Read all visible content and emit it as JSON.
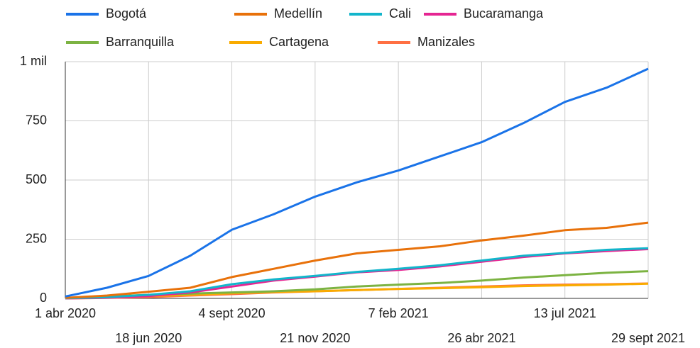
{
  "chart_data": {
    "type": "line",
    "x": [
      "2020-04-01",
      "2020-05-10",
      "2020-06-18",
      "2020-07-27",
      "2020-09-04",
      "2020-10-13",
      "2020-11-21",
      "2020-12-30",
      "2021-02-07",
      "2021-03-18",
      "2021-04-26",
      "2021-06-04",
      "2021-07-13",
      "2021-08-21",
      "2021-09-29"
    ],
    "xlim": [
      "2020-04-01",
      "2021-09-29"
    ],
    "xticks": [
      {
        "value": "2020-04-01",
        "label": "1 abr 2020"
      },
      {
        "value": "2020-06-18",
        "label": "18 jun 2020"
      },
      {
        "value": "2020-09-04",
        "label": "4 sept 2020"
      },
      {
        "value": "2020-11-21",
        "label": "21 nov 2020"
      },
      {
        "value": "2021-02-07",
        "label": "7 feb 2021"
      },
      {
        "value": "2021-04-26",
        "label": "26 abr 2021"
      },
      {
        "value": "2021-07-13",
        "label": "13 jul 2021"
      },
      {
        "value": "2021-09-29",
        "label": "29 sept 2021"
      }
    ],
    "ylim": [
      0,
      1000
    ],
    "yticks": [
      0,
      250,
      500,
      750,
      {
        "value": 1000,
        "label": "1 mil"
      }
    ],
    "grid": true,
    "legend": "top",
    "series": [
      {
        "name": "Bogotá",
        "color": "#1a73e8",
        "values": [
          8,
          45,
          95,
          180,
          290,
          355,
          430,
          490,
          540,
          600,
          660,
          740,
          830,
          890,
          970
        ]
      },
      {
        "name": "Medellín",
        "color": "#e8710a",
        "values": [
          2,
          12,
          28,
          45,
          90,
          125,
          160,
          190,
          205,
          220,
          245,
          265,
          288,
          298,
          320
        ]
      },
      {
        "name": "Cali",
        "color": "#12b5cb",
        "values": [
          1,
          5,
          15,
          30,
          60,
          80,
          95,
          112,
          125,
          140,
          160,
          180,
          192,
          205,
          212
        ]
      },
      {
        "name": "Bucaramanga",
        "color": "#e52592",
        "values": [
          0,
          3,
          10,
          25,
          50,
          75,
          92,
          110,
          120,
          135,
          155,
          175,
          190,
          200,
          208
        ]
      },
      {
        "name": "Barranquilla",
        "color": "#7cb342",
        "values": [
          1,
          8,
          15,
          20,
          25,
          30,
          38,
          50,
          58,
          65,
          75,
          88,
          98,
          108,
          115
        ]
      },
      {
        "name": "Cartagena",
        "color": "#f9ab00",
        "values": [
          1,
          4,
          10,
          15,
          22,
          27,
          30,
          35,
          40,
          43,
          47,
          52,
          55,
          58,
          62
        ]
      },
      {
        "name": "Manizales",
        "color": "#ff7043",
        "values": [
          0,
          2,
          5,
          12,
          18,
          25,
          30,
          35,
          40,
          45,
          50,
          55,
          58,
          60,
          63
        ]
      }
    ]
  }
}
